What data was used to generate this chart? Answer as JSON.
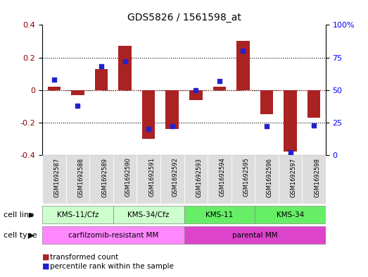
{
  "title": "GDS5826 / 1561598_at",
  "samples": [
    "GSM1692587",
    "GSM1692588",
    "GSM1692589",
    "GSM1692590",
    "GSM1692591",
    "GSM1692592",
    "GSM1692593",
    "GSM1692594",
    "GSM1692595",
    "GSM1692596",
    "GSM1692597",
    "GSM1692598"
  ],
  "transformed_count": [
    0.02,
    -0.03,
    0.13,
    0.27,
    -0.3,
    -0.24,
    -0.06,
    0.02,
    0.3,
    -0.15,
    -0.38,
    -0.17
  ],
  "percentile_rank": [
    58,
    38,
    68,
    72,
    20,
    22,
    50,
    57,
    80,
    22,
    2,
    23
  ],
  "cell_line_groups": [
    {
      "label": "KMS-11/Cfz",
      "start": 0,
      "end": 2,
      "color": "#ccffcc"
    },
    {
      "label": "KMS-34/Cfz",
      "start": 3,
      "end": 5,
      "color": "#ccffcc"
    },
    {
      "label": "KMS-11",
      "start": 6,
      "end": 8,
      "color": "#66ee66"
    },
    {
      "label": "KMS-34",
      "start": 9,
      "end": 11,
      "color": "#66ee66"
    }
  ],
  "cell_type_groups": [
    {
      "label": "carfilzomib-resistant MM",
      "start": 0,
      "end": 5,
      "color": "#ff88ff"
    },
    {
      "label": "parental MM",
      "start": 6,
      "end": 11,
      "color": "#dd44cc"
    }
  ],
  "bar_color": "#aa2222",
  "dot_color": "#2222cc",
  "ylim_left": [
    -0.4,
    0.4
  ],
  "ylim_right": [
    0,
    100
  ],
  "yticks_left": [
    -0.4,
    -0.2,
    0.0,
    0.2,
    0.4
  ],
  "yticks_right": [
    0,
    25,
    50,
    75,
    100
  ],
  "ytick_labels_right": [
    "0",
    "25",
    "50",
    "75",
    "100%"
  ],
  "hlines_dotted": [
    -0.2,
    0.2
  ],
  "background_color": "#ffffff",
  "cell_line_label": "cell line",
  "cell_type_label": "cell type",
  "legend_items": [
    "transformed count",
    "percentile rank within the sample"
  ],
  "sample_box_color": "#dddddd",
  "bar_width": 0.55
}
